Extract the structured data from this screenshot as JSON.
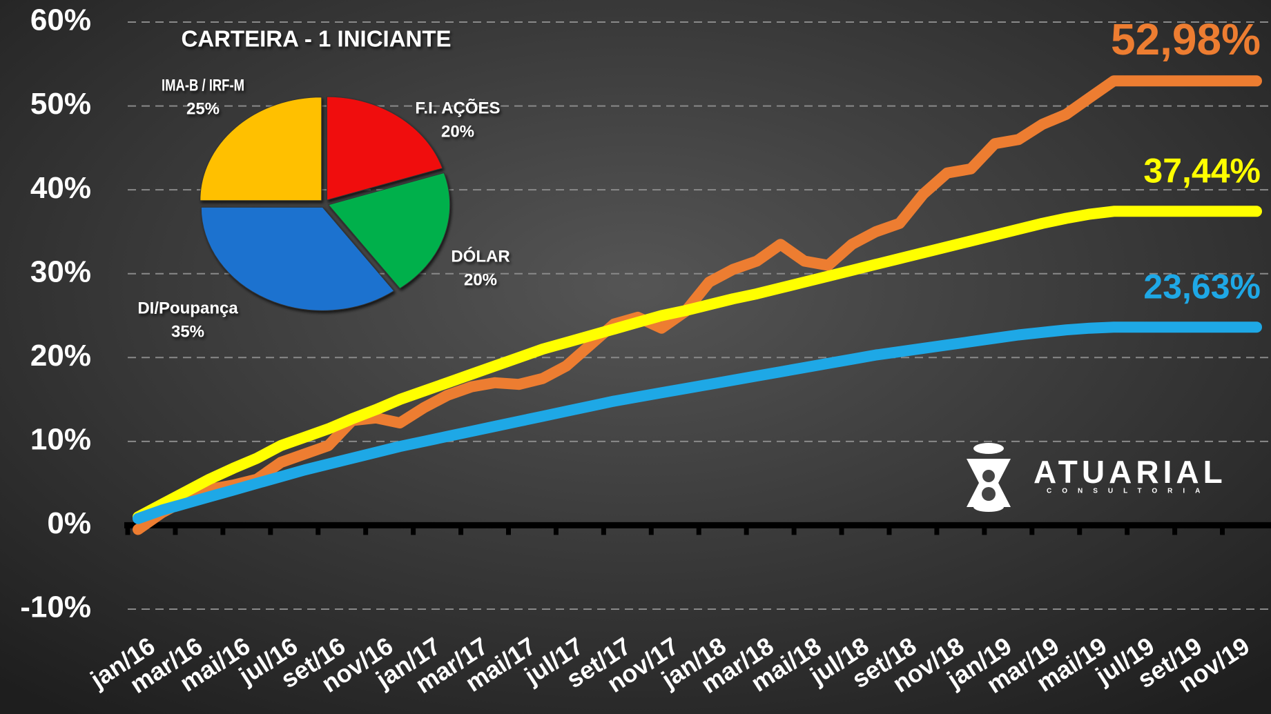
{
  "chart_data": [
    {
      "type": "line",
      "categories": [
        "jan/16",
        null,
        "mar/16",
        null,
        "mai/16",
        null,
        "jul/16",
        null,
        "set/16",
        null,
        "nov/16",
        null,
        "jan/17",
        null,
        "mar/17",
        null,
        "mai/17",
        null,
        "jul/17",
        null,
        "set/17",
        null,
        "nov/17",
        null,
        "jan/18",
        null,
        "mar/18",
        null,
        "mai/18",
        null,
        "jul/18",
        null,
        "set/18",
        null,
        "nov/18",
        null,
        "jan/19",
        null,
        "mar/19",
        null,
        "mai/19",
        null,
        "jul/19",
        null,
        "set/19",
        null,
        "nov/19",
        null
      ],
      "series": [
        {
          "color": "#ed7d31",
          "values": [
            -0.5,
            1.5,
            3,
            4.3,
            4.8,
            5.5,
            7.5,
            8.5,
            9.5,
            12.5,
            12.8,
            12.2,
            14,
            15.5,
            16.5,
            17,
            16.8,
            17.5,
            19,
            21.5,
            24,
            24.8,
            23.5,
            25.5,
            29,
            30.5,
            31.5,
            33.5,
            31.5,
            31,
            33.5,
            35,
            36,
            39.5,
            42,
            42.5,
            45.5,
            46,
            47.8,
            49,
            51,
            52.98,
            52.98,
            52.98,
            52.98,
            52.98,
            52.98,
            52.98
          ],
          "value_labels": [
            null,
            null,
            null,
            null,
            null,
            null,
            null,
            null,
            null,
            null,
            null,
            null,
            null,
            null,
            null,
            null,
            null,
            null,
            null,
            null,
            null,
            null,
            null,
            null,
            null,
            null,
            null,
            null,
            null,
            null,
            null,
            null,
            null,
            null,
            null,
            null,
            null,
            null,
            null,
            null,
            null,
            null,
            null,
            null,
            null,
            null,
            null,
            "52,98%"
          ]
        },
        {
          "color": "#ffff00",
          "values": [
            1,
            2.5,
            4,
            5.5,
            6.8,
            8,
            9.5,
            10.5,
            11.5,
            12.7,
            13.8,
            15,
            16,
            17,
            18,
            19,
            20,
            21,
            21.8,
            22.6,
            23.4,
            24.2,
            25,
            25.6,
            26.3,
            27,
            27.6,
            28.3,
            29,
            29.7,
            30.4,
            31.1,
            31.8,
            32.5,
            33.2,
            33.9,
            34.6,
            35.3,
            36,
            36.6,
            37.1,
            37.44,
            37.44,
            37.44,
            37.44,
            37.44,
            37.44,
            37.44
          ],
          "value_labels": [
            null,
            null,
            null,
            null,
            null,
            null,
            null,
            null,
            null,
            null,
            null,
            null,
            null,
            null,
            null,
            null,
            null,
            null,
            null,
            null,
            null,
            null,
            null,
            null,
            null,
            null,
            null,
            null,
            null,
            null,
            null,
            null,
            null,
            null,
            null,
            null,
            null,
            null,
            null,
            null,
            null,
            null,
            null,
            null,
            null,
            null,
            null,
            "37,44%"
          ]
        },
        {
          "color": "#1ea8e6",
          "values": [
            0.8,
            1.8,
            2.6,
            3.4,
            4.2,
            5,
            5.8,
            6.6,
            7.3,
            8,
            8.7,
            9.4,
            10,
            10.6,
            11.2,
            11.8,
            12.4,
            13,
            13.6,
            14.2,
            14.8,
            15.3,
            15.8,
            16.3,
            16.8,
            17.3,
            17.8,
            18.3,
            18.8,
            19.3,
            19.8,
            20.3,
            20.7,
            21.1,
            21.5,
            21.9,
            22.3,
            22.7,
            23,
            23.3,
            23.5,
            23.63,
            23.63,
            23.63,
            23.63,
            23.63,
            23.63,
            23.63
          ],
          "value_labels": [
            null,
            null,
            null,
            null,
            null,
            null,
            null,
            null,
            null,
            null,
            null,
            null,
            null,
            null,
            null,
            null,
            null,
            null,
            null,
            null,
            null,
            null,
            null,
            null,
            null,
            null,
            null,
            null,
            null,
            null,
            null,
            null,
            null,
            null,
            null,
            null,
            null,
            null,
            null,
            null,
            null,
            null,
            null,
            null,
            null,
            null,
            null,
            "23,63%"
          ]
        }
      ],
      "ylim": [
        -10,
        60
      ],
      "yticks": [
        {
          "value": -10,
          "label": "-10%"
        },
        {
          "value": 0,
          "label": "0%"
        },
        {
          "value": 10,
          "label": "10%"
        },
        {
          "value": 20,
          "label": "20%"
        },
        {
          "value": 30,
          "label": "30%"
        },
        {
          "value": 40,
          "label": "40%"
        },
        {
          "value": 50,
          "label": "50%"
        },
        {
          "value": 60,
          "label": "60%"
        }
      ],
      "grid": true
    },
    {
      "type": "pie",
      "title": "CARTEIRA - 1 INICIANTE",
      "categories": [
        "F.I. AÇÕES",
        "DÓLAR",
        "DI/Poupança",
        "IMA-B / IRF-M"
      ],
      "values": [
        20,
        20,
        35,
        25
      ],
      "value_labels": [
        "20%",
        "20%",
        "35%",
        "25%"
      ],
      "colors": [
        "#f01010",
        "#00b04c",
        "#1a72cf",
        "#ffc000"
      ]
    }
  ],
  "logo": {
    "name": "ATUARIAL",
    "tagline": "CONSULTORIA"
  }
}
